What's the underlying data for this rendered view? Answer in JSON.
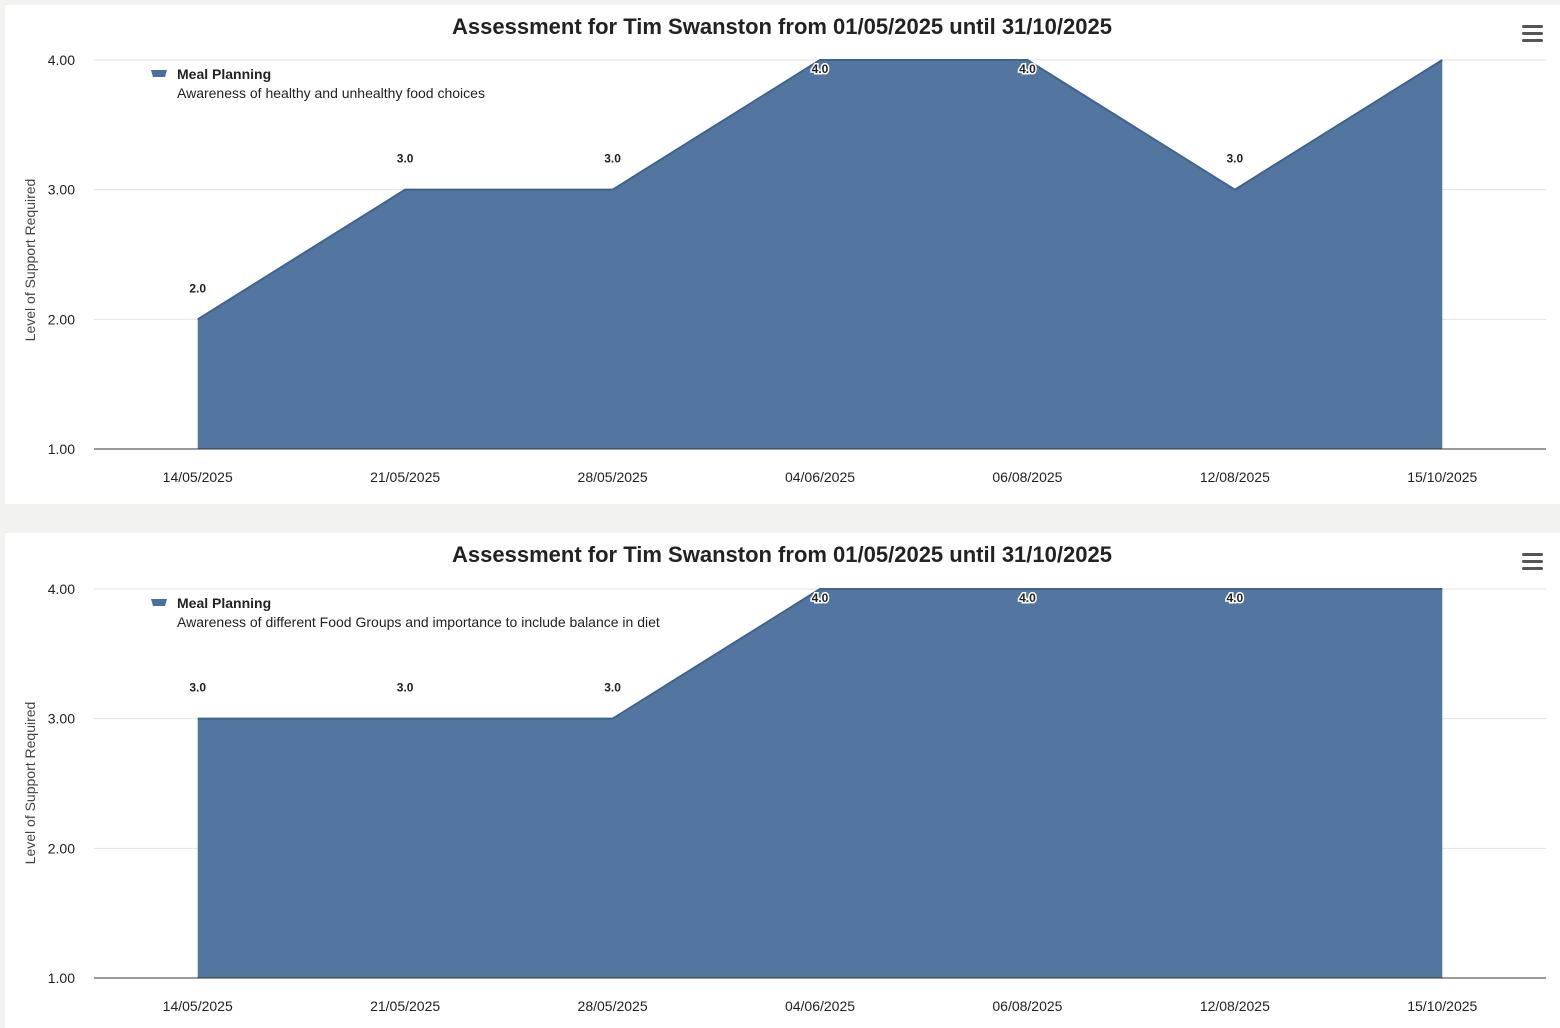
{
  "charts": [
    {
      "title": "Assessment for Tim Swanston from 01/05/2025 until 31/10/2025",
      "legend_name": "Meal Planning",
      "legend_desc": "Awareness of healthy and unhealthy food choices",
      "ylabel": "Level of Support Required",
      "menu_icon": "hamburger-menu-icon"
    },
    {
      "title": "Assessment for Tim Swanston from 01/05/2025 until 31/10/2025",
      "legend_name": "Meal Planning",
      "legend_desc": "Awareness of different Food Groups and importance to include balance in diet",
      "ylabel": "Level of Support Required",
      "menu_icon": "hamburger-menu-icon"
    }
  ],
  "chart_data": [
    {
      "type": "area",
      "title": "Assessment for Tim Swanston from 01/05/2025 until 31/10/2025",
      "categories": [
        "14/05/2025",
        "21/05/2025",
        "28/05/2025",
        "04/06/2025",
        "06/08/2025",
        "12/08/2025",
        "15/10/2025"
      ],
      "series": [
        {
          "name": "Meal Planning",
          "values": [
            2.0,
            3.0,
            3.0,
            4.0,
            4.0,
            3.0,
            4.0
          ]
        }
      ],
      "data_labels": [
        "2.0",
        "3.0",
        "3.0",
        "4.0",
        "4.0",
        "3.0",
        ""
      ],
      "ylabel": "Level of Support Required",
      "ylim": [
        1,
        4
      ],
      "yticks": [
        "1.00",
        "2.00",
        "3.00",
        "4.00"
      ],
      "grid": true,
      "legend": "top-left",
      "color": "#4a6f9c"
    },
    {
      "type": "area",
      "title": "Assessment for Tim Swanston from 01/05/2025 until 31/10/2025",
      "categories": [
        "14/05/2025",
        "21/05/2025",
        "28/05/2025",
        "04/06/2025",
        "06/08/2025",
        "12/08/2025",
        "15/10/2025"
      ],
      "series": [
        {
          "name": "Meal Planning",
          "values": [
            3.0,
            3.0,
            3.0,
            4.0,
            4.0,
            4.0,
            4.0
          ]
        }
      ],
      "data_labels": [
        "3.0",
        "3.0",
        "3.0",
        "4.0",
        "4.0",
        "4.0",
        ""
      ],
      "ylabel": "Level of Support Required",
      "ylim": [
        1,
        4
      ],
      "yticks": [
        "1.00",
        "2.00",
        "3.00",
        "4.00"
      ],
      "grid": true,
      "legend": "top-left",
      "color": "#4a6f9c"
    }
  ]
}
